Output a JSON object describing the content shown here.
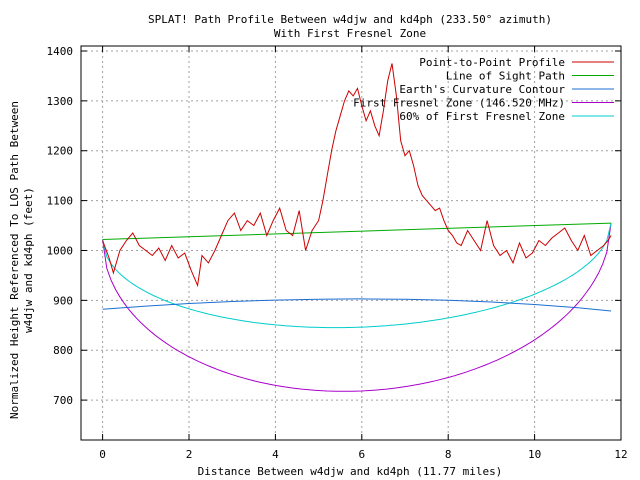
{
  "chart_data": {
    "type": "line",
    "title": "SPLAT! Path Profile Between w4djw and kd4ph (233.50° azimuth)",
    "subtitle": "With First Fresnel Zone",
    "xlabel": "Distance Between w4djw and kd4ph (11.77 miles)",
    "ylabel_line1": "Normalized Height Referenced To LOS Path Between",
    "ylabel_line2": "w4djw and kd4ph (feet)",
    "xlim": [
      -0.5,
      12
    ],
    "ylim": [
      620,
      1410
    ],
    "xticks": [
      "0",
      "2",
      "4",
      "6",
      "8",
      "10",
      "12"
    ],
    "xtick_values": [
      0,
      2,
      4,
      6,
      8,
      10,
      12
    ],
    "yticks": [
      "700",
      "800",
      "900",
      "1000",
      "1100",
      "1200",
      "1300",
      "1400"
    ],
    "ytick_values": [
      700,
      800,
      900,
      1000,
      1100,
      1200,
      1300,
      1400
    ],
    "grid": true,
    "legend_position": "top-right",
    "series": [
      {
        "name": "Point-to-Point Profile",
        "color": "#cc0000",
        "x": [
          0,
          0.15,
          0.25,
          0.4,
          0.55,
          0.7,
          0.85,
          1.0,
          1.15,
          1.3,
          1.45,
          1.6,
          1.75,
          1.9,
          2.05,
          2.2,
          2.3,
          2.45,
          2.6,
          2.75,
          2.9,
          3.05,
          3.2,
          3.35,
          3.5,
          3.65,
          3.8,
          3.95,
          4.1,
          4.25,
          4.4,
          4.55,
          4.7,
          4.85,
          5.0,
          5.1,
          5.2,
          5.3,
          5.4,
          5.5,
          5.6,
          5.7,
          5.8,
          5.9,
          6.0,
          6.1,
          6.2,
          6.3,
          6.4,
          6.5,
          6.6,
          6.7,
          6.8,
          6.9,
          7.0,
          7.1,
          7.2,
          7.3,
          7.4,
          7.5,
          7.6,
          7.7,
          7.8,
          7.9,
          8.0,
          8.1,
          8.2,
          8.3,
          8.45,
          8.6,
          8.75,
          8.9,
          9.05,
          9.2,
          9.35,
          9.5,
          9.65,
          9.8,
          9.95,
          10.1,
          10.25,
          10.4,
          10.55,
          10.7,
          10.85,
          11.0,
          11.15,
          11.3,
          11.45,
          11.6,
          11.7,
          11.77
        ],
        "y": [
          1020,
          985,
          955,
          1000,
          1020,
          1035,
          1010,
          1000,
          990,
          1005,
          980,
          1010,
          985,
          995,
          960,
          930,
          990,
          975,
          1000,
          1030,
          1060,
          1075,
          1040,
          1060,
          1050,
          1075,
          1030,
          1060,
          1085,
          1040,
          1030,
          1080,
          1000,
          1040,
          1060,
          1100,
          1150,
          1200,
          1240,
          1270,
          1300,
          1320,
          1310,
          1325,
          1290,
          1260,
          1280,
          1250,
          1230,
          1280,
          1340,
          1375,
          1310,
          1220,
          1190,
          1200,
          1170,
          1130,
          1110,
          1100,
          1090,
          1080,
          1085,
          1060,
          1040,
          1030,
          1015,
          1010,
          1040,
          1020,
          1000,
          1060,
          1010,
          990,
          1000,
          975,
          1015,
          985,
          995,
          1020,
          1010,
          1025,
          1035,
          1045,
          1020,
          1000,
          1030,
          990,
          1000,
          1010,
          1020,
          1030
        ]
      },
      {
        "name": "Line of Sight Path",
        "color": "#00aa00",
        "x": [
          0,
          11.77
        ],
        "y": [
          1022,
          1055
        ]
      },
      {
        "name": "Earth's Curvature Contour",
        "color": "#1a6fd0",
        "x": [
          0,
          1,
          2,
          3,
          4,
          5,
          5.885,
          7,
          8,
          9,
          10,
          11,
          11.77
        ],
        "y": [
          882,
          888.5,
          893.6,
          897.7,
          900.6,
          902.3,
          902.9,
          902.2,
          900.2,
          896.8,
          891.7,
          885.1,
          878.7
        ]
      },
      {
        "name": "First Fresnel Zone (146.520 MHz)",
        "color": "#aa00cc",
        "fresnel_radius_mid_feet": 310,
        "fresnel_min_feet": 718
      },
      {
        "name": "60% of First Fresnel Zone",
        "color": "#00cccc",
        "fresnel_min_feet": 846
      }
    ]
  }
}
